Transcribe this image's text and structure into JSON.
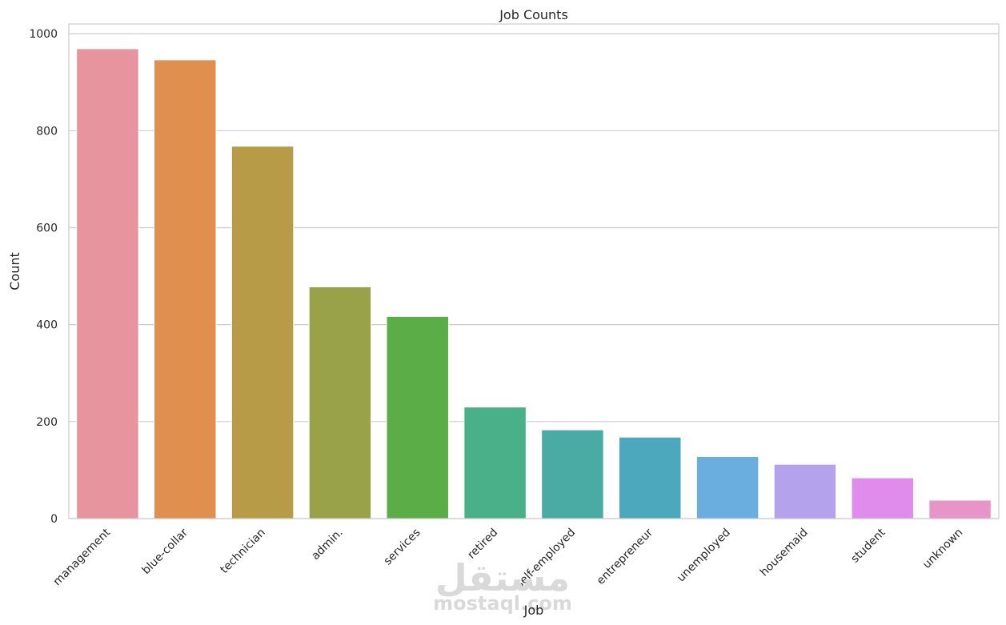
{
  "chart_data": {
    "type": "bar",
    "title": "Job Counts",
    "xlabel": "Job",
    "ylabel": "Count",
    "ylim": [
      0,
      1020
    ],
    "yticks": [
      0,
      200,
      400,
      600,
      800,
      1000
    ],
    "grid": "horizontal",
    "categories": [
      "management",
      "blue-collar",
      "technician",
      "admin.",
      "services",
      "retired",
      "self-employed",
      "entrepreneur",
      "unemployed",
      "housemaid",
      "student",
      "unknown"
    ],
    "values": [
      969,
      946,
      768,
      478,
      417,
      230,
      183,
      168,
      128,
      112,
      84,
      38
    ],
    "colors": [
      "#e8949f",
      "#e08f4f",
      "#b89b46",
      "#99a248",
      "#5bae47",
      "#4ab089",
      "#4aaba4",
      "#4ba8bd",
      "#6aaee0",
      "#b4a3ec",
      "#e08ced",
      "#e795c8"
    ]
  },
  "watermark": {
    "arabic": "مستقل",
    "latin": "mostaql.com"
  }
}
